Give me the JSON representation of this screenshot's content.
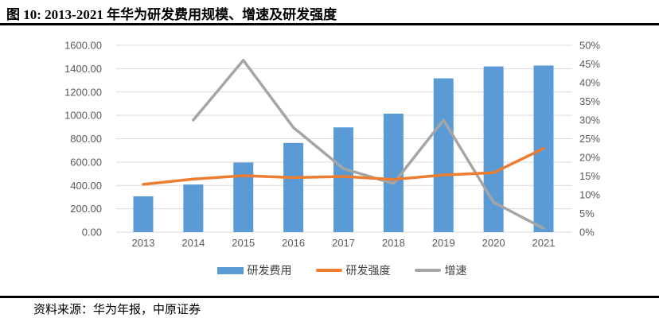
{
  "header": {
    "title": "图 10: 2013-2021 年华为研发费用规模、增速及研发强度"
  },
  "footer": {
    "source": "资料来源：华为年报，中原证券"
  },
  "chart_data": {
    "type": "bar",
    "subtype": "combo-bar-line-dual-axis",
    "title": "图 10: 2013-2021 年华为研发费用规模、增速及研发强度",
    "categories": [
      "2013",
      "2014",
      "2015",
      "2016",
      "2017",
      "2018",
      "2019",
      "2020",
      "2021"
    ],
    "series": [
      {
        "name": "研发费用",
        "type": "bar",
        "axis": "left",
        "color": "#5B9BD5",
        "values": [
          307,
          408,
          596,
          764,
          897,
          1015,
          1317,
          1419,
          1427
        ]
      },
      {
        "name": "研发强度",
        "type": "line",
        "axis": "right",
        "unit": "%",
        "color": "#ED7D31",
        "values": [
          12.8,
          14.2,
          15.1,
          14.6,
          14.9,
          14.1,
          15.3,
          15.9,
          22.4
        ]
      },
      {
        "name": "增速",
        "type": "line",
        "axis": "right",
        "unit": "%",
        "color": "#A5A5A5",
        "values": [
          null,
          30,
          46,
          28,
          17,
          13,
          30,
          8,
          1
        ]
      }
    ],
    "left_axis": {
      "min": 0,
      "max": 1600,
      "step": 200,
      "tick_labels": [
        "0.00",
        "200.00",
        "400.00",
        "600.00",
        "800.00",
        "1000.00",
        "1200.00",
        "1400.00",
        "1600.00"
      ]
    },
    "right_axis": {
      "min": 0,
      "max": 50,
      "step": 5,
      "tick_labels": [
        "0%",
        "5%",
        "10%",
        "15%",
        "20%",
        "25%",
        "30%",
        "35%",
        "40%",
        "45%",
        "50%"
      ]
    },
    "grid": true,
    "legend_position": "bottom",
    "gridline_color": "#D9D9D9",
    "axis_text_color": "#595959"
  }
}
